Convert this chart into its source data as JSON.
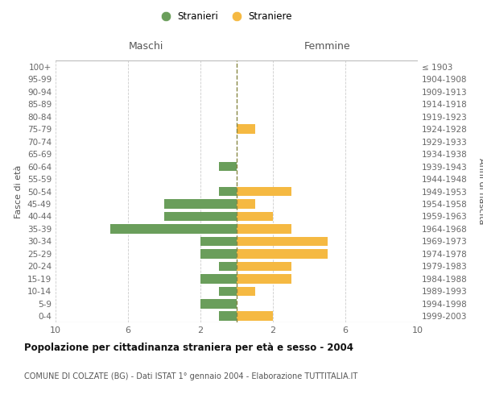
{
  "age_groups": [
    "0-4",
    "5-9",
    "10-14",
    "15-19",
    "20-24",
    "25-29",
    "30-34",
    "35-39",
    "40-44",
    "45-49",
    "50-54",
    "55-59",
    "60-64",
    "65-69",
    "70-74",
    "75-79",
    "80-84",
    "85-89",
    "90-94",
    "95-99",
    "100+"
  ],
  "birth_years": [
    "1999-2003",
    "1994-1998",
    "1989-1993",
    "1984-1988",
    "1979-1983",
    "1974-1978",
    "1969-1973",
    "1964-1968",
    "1959-1963",
    "1954-1958",
    "1949-1953",
    "1944-1948",
    "1939-1943",
    "1934-1938",
    "1929-1933",
    "1924-1928",
    "1919-1923",
    "1914-1918",
    "1909-1913",
    "1904-1908",
    "≤ 1903"
  ],
  "males": [
    1,
    2,
    1,
    2,
    1,
    2,
    2,
    7,
    4,
    4,
    1,
    0,
    1,
    0,
    0,
    0,
    0,
    0,
    0,
    0,
    0
  ],
  "females": [
    2,
    0,
    1,
    3,
    3,
    5,
    5,
    3,
    2,
    1,
    3,
    0,
    0,
    0,
    0,
    1,
    0,
    0,
    0,
    0,
    0
  ],
  "male_color": "#6a9e5b",
  "female_color": "#f5b942",
  "background_color": "#ffffff",
  "grid_color": "#cccccc",
  "title": "Popolazione per cittadinanza straniera per età e sesso - 2004",
  "subtitle": "COMUNE DI COLZATE (BG) - Dati ISTAT 1° gennaio 2004 - Elaborazione TUTTITALIA.IT",
  "ylabel_left": "Fasce di età",
  "ylabel_right": "Anni di nascita",
  "xlabel_left": "Maschi",
  "xlabel_right": "Femmine",
  "legend_male": "Stranieri",
  "legend_female": "Straniere",
  "xlim": 10,
  "center_line_color": "#888844"
}
